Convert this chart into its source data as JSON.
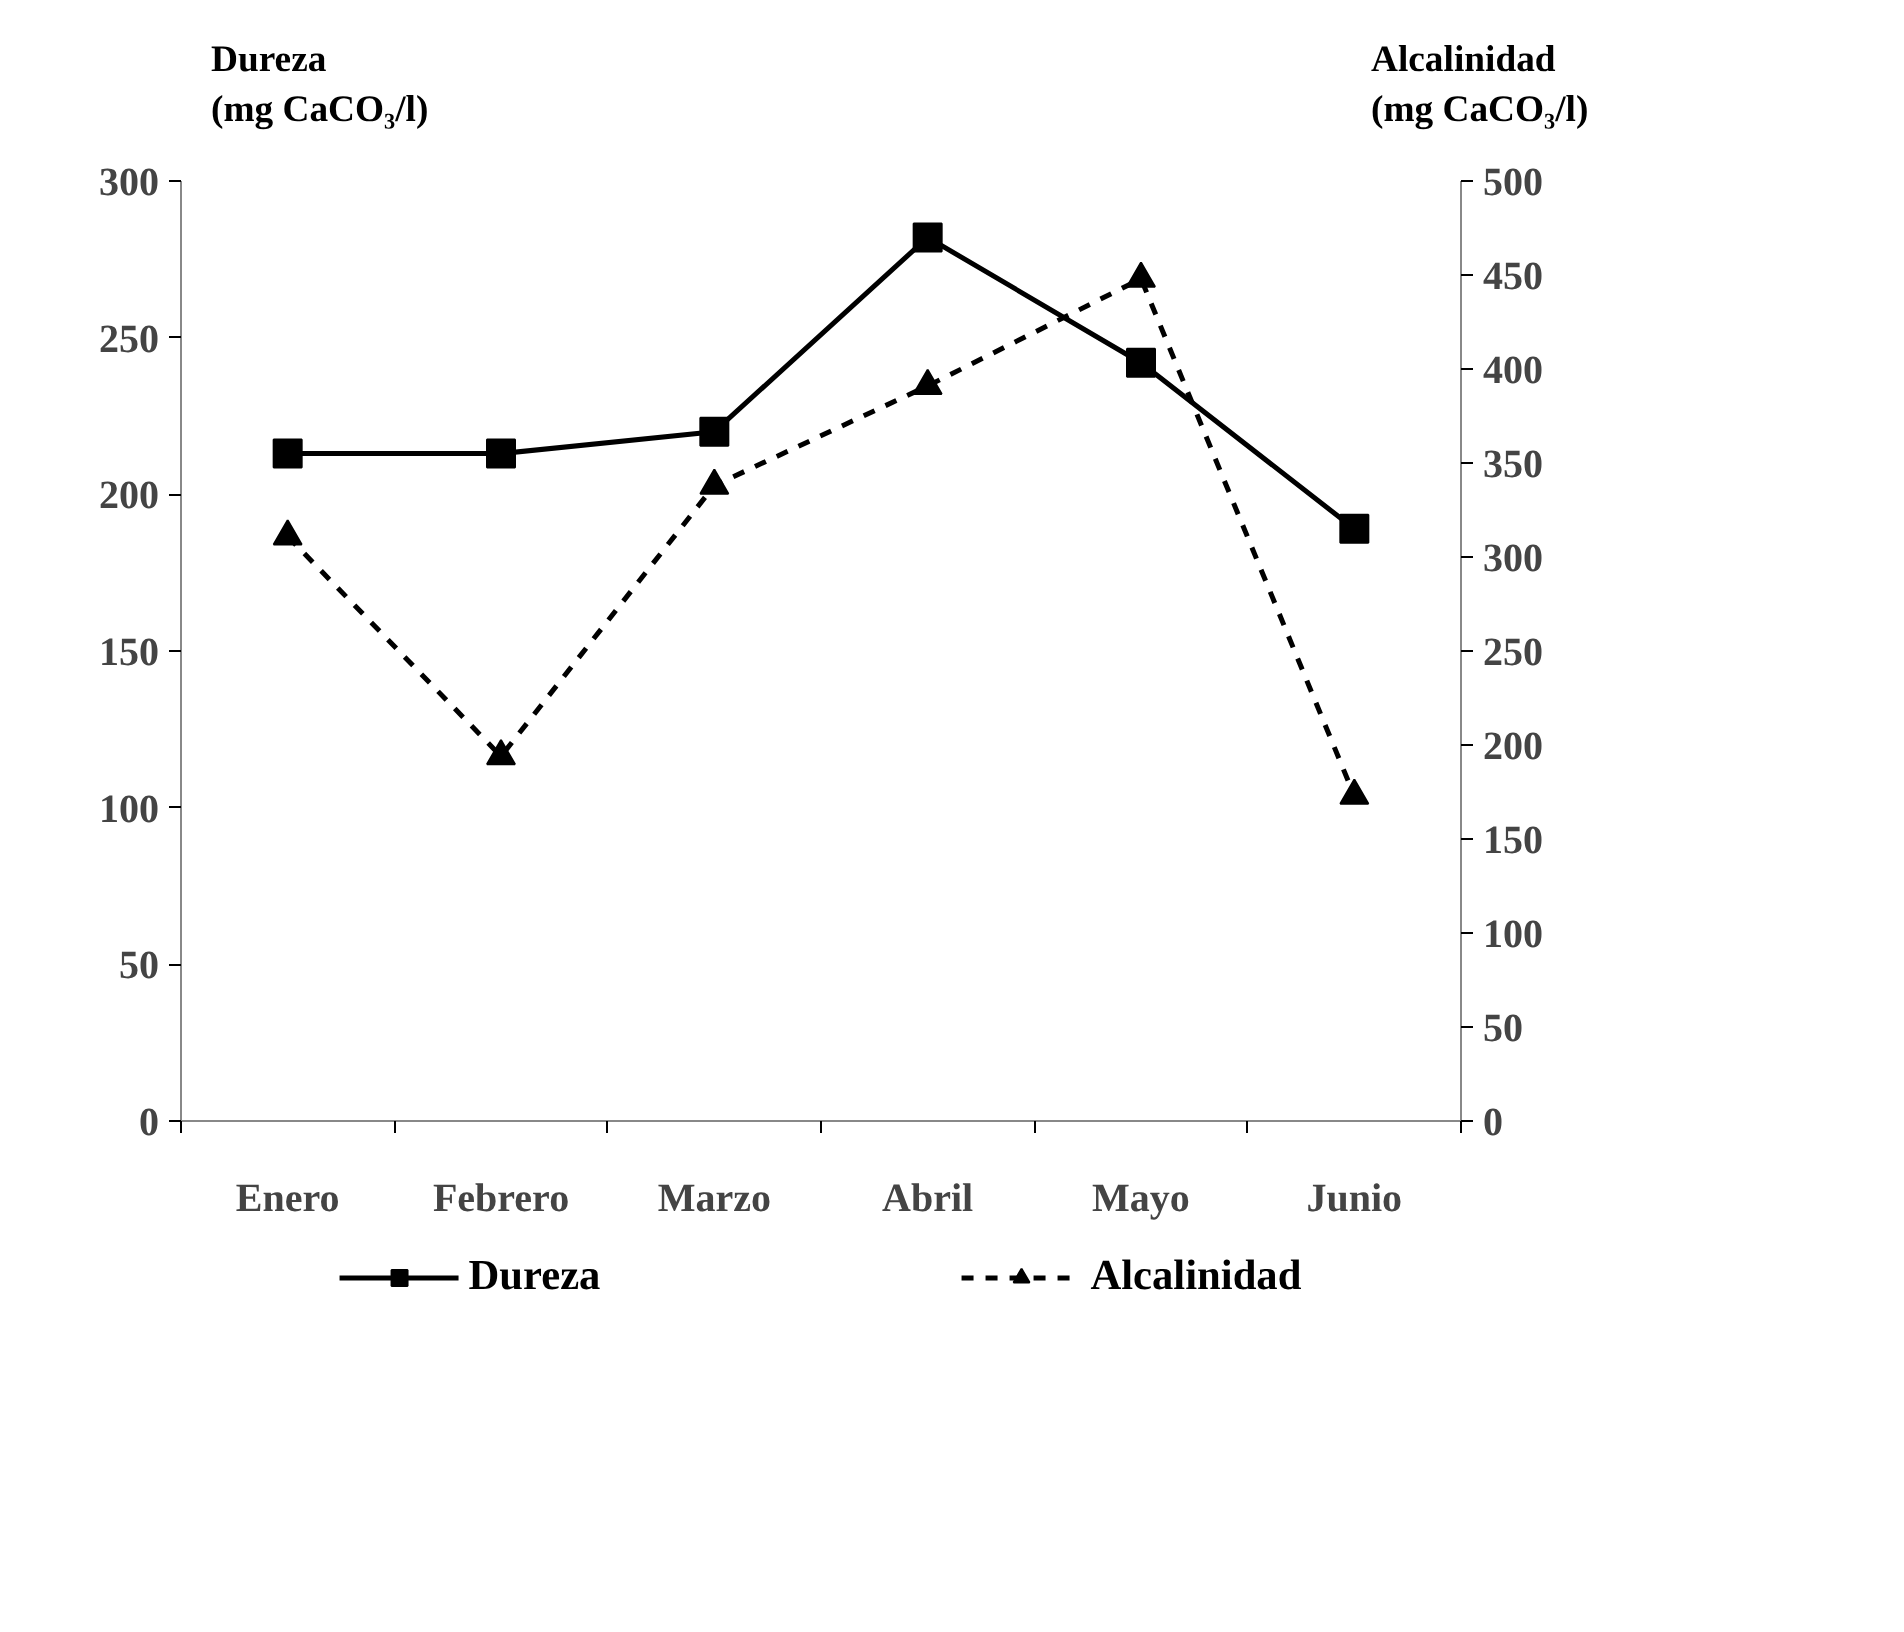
{
  "chart_data": {
    "type": "line",
    "categories": [
      "Enero",
      "Febrero",
      "Marzo",
      "Abril",
      "Mayo",
      "Junio"
    ],
    "ylabel": "Dureza\n(mg CaCO₃/l)",
    "y2label": "Alcalinidad\n(mg CaCO₃/l)",
    "series": [
      {
        "name": "Dureza",
        "color": "#000000",
        "values": [
          213,
          213,
          220,
          282,
          242,
          189
        ],
        "marker": "square",
        "line_style": "solid"
      },
      {
        "name": "Alcalinidad",
        "color": "#000000",
        "values": [
          311,
          194,
          338,
          391,
          448,
          173
        ],
        "marker": "triangle",
        "line_style": "dashed",
        "axis": "y2"
      }
    ],
    "ylim": [
      0,
      300
    ],
    "yticks": [
      0,
      50,
      100,
      150,
      200,
      250,
      300
    ],
    "y2lim": [
      0,
      500
    ],
    "y2ticks": [
      0,
      50,
      100,
      150,
      200,
      250,
      300,
      350,
      400,
      450,
      500
    ],
    "grid": false,
    "legend": "bottom"
  }
}
